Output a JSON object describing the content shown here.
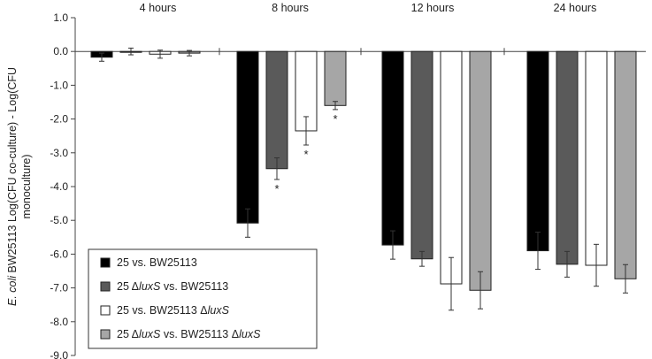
{
  "chart_data": {
    "type": "bar",
    "categories": [
      "4 hours",
      "8 hours",
      "12 hours",
      "24 hours"
    ],
    "ylabel_line1_italic": "E. coli",
    "ylabel_line1_rest": " BW25113 Log(CFU co-culture) - Log(CFU",
    "ylabel_line2": "monoculture)",
    "ylim": [
      -9.0,
      1.0
    ],
    "yticks": [
      "1.0",
      "0.0",
      "-1.0",
      "-2.0",
      "-3.0",
      "-4.0",
      "-5.0",
      "-6.0",
      "-7.0",
      "-8.0",
      "-9.0"
    ],
    "ytick_values": [
      1,
      0,
      -1,
      -2,
      -3,
      -4,
      -5,
      -6,
      -7,
      -8,
      -9
    ],
    "grid": false,
    "legend_position": "bottom-left",
    "series": [
      {
        "label_parts": [
          {
            "text": "25 vs. BW25113",
            "italic": false
          }
        ],
        "color": "#000000",
        "values": [
          -0.17,
          -5.08,
          -5.73,
          -5.9
        ],
        "errors": [
          0.12,
          0.42,
          0.42,
          0.55
        ]
      },
      {
        "label_parts": [
          {
            "text": "25 Δ",
            "italic": false
          },
          {
            "text": "luxS",
            "italic": true
          },
          {
            "text": " vs. BW25113",
            "italic": false
          }
        ],
        "color": "#5a5a5a",
        "values": [
          0.0,
          -3.47,
          -6.14,
          -6.3
        ],
        "errors": [
          0.1,
          0.32,
          0.22,
          0.38
        ]
      },
      {
        "label_parts": [
          {
            "text": "25 vs. BW25113 Δ",
            "italic": false
          },
          {
            "text": "luxS",
            "italic": true
          }
        ],
        "color": "#ffffff",
        "values": [
          -0.08,
          -2.35,
          -6.88,
          -6.33
        ],
        "errors": [
          0.12,
          0.42,
          0.78,
          0.62
        ]
      },
      {
        "label_parts": [
          {
            "text": "25 Δ",
            "italic": false
          },
          {
            "text": "luxS",
            "italic": true
          },
          {
            "text": " vs. BW25113 Δ",
            "italic": false
          },
          {
            "text": "luxS",
            "italic": true
          }
        ],
        "color": "#a6a6a6",
        "values": [
          -0.05,
          -1.6,
          -7.07,
          -6.73
        ],
        "errors": [
          0.08,
          0.12,
          0.55,
          0.42
        ]
      }
    ],
    "annotations": [
      {
        "category_index": 1,
        "series_index": 1,
        "text": "*"
      },
      {
        "category_index": 1,
        "series_index": 2,
        "text": "*"
      },
      {
        "category_index": 1,
        "series_index": 3,
        "text": "*"
      }
    ]
  }
}
